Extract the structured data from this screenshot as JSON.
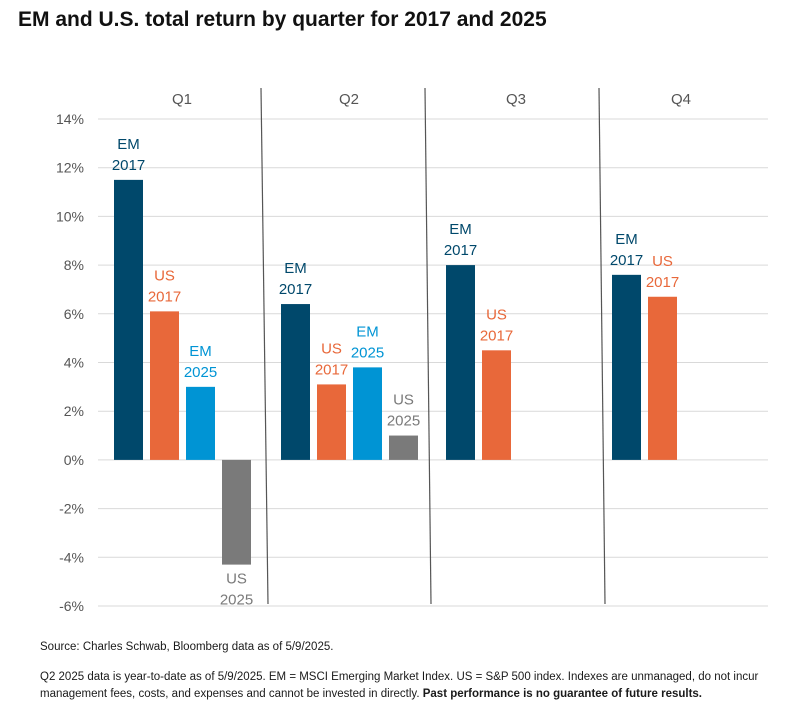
{
  "title": "EM and U.S. total return by quarter for 2017 and 2025",
  "source": "Source: Charles Schwab, Bloomberg data as of 5/9/2025.",
  "notes": "Q2 2025 data is year-to-date as of 5/9/2025. EM = MSCI Emerging Market Index. US = S&P 500 index. Indexes are unmanaged, do not incur management fees, costs, and expenses and cannot be invested in directly.",
  "notes_bold": "Past performance is no guarantee of future results.",
  "colors": {
    "em_2017": "#00486b",
    "us_2017": "#e8683a",
    "em_2025": "#0094d4",
    "us_2025": "#7a7a7a",
    "grid": "#d9d9d9",
    "divider": "#555555",
    "axis_text": "#555555"
  },
  "chart_data": {
    "type": "bar",
    "categories": [
      "Q1",
      "Q2",
      "Q3",
      "Q4"
    ],
    "ylim": [
      -6,
      14
    ],
    "yticks": [
      14,
      12,
      10,
      8,
      6,
      4,
      2,
      0,
      -2,
      -4,
      -6
    ],
    "ytick_labels": [
      "14%",
      "12%",
      "10%",
      "8%",
      "6%",
      "4%",
      "2%",
      "0%",
      "-2%",
      "-4%",
      "-6%"
    ],
    "grid": true,
    "legend": "none",
    "series": [
      {
        "name": "EM 2017",
        "label_lines": [
          "EM",
          "2017"
        ],
        "color_key": "em_2017",
        "values": [
          11.5,
          6.4,
          8.0,
          7.6
        ]
      },
      {
        "name": "US 2017",
        "label_lines": [
          "US",
          "2017"
        ],
        "color_key": "us_2017",
        "values": [
          6.1,
          3.1,
          4.5,
          6.7
        ]
      },
      {
        "name": "EM 2025",
        "label_lines": [
          "EM",
          "2025"
        ],
        "color_key": "em_2025",
        "values": [
          3.0,
          3.8,
          null,
          null
        ]
      },
      {
        "name": "US 2025",
        "label_lines": [
          "US",
          "2025"
        ],
        "color_key": "us_2025",
        "values": [
          -4.3,
          1.0,
          null,
          null
        ]
      }
    ]
  }
}
